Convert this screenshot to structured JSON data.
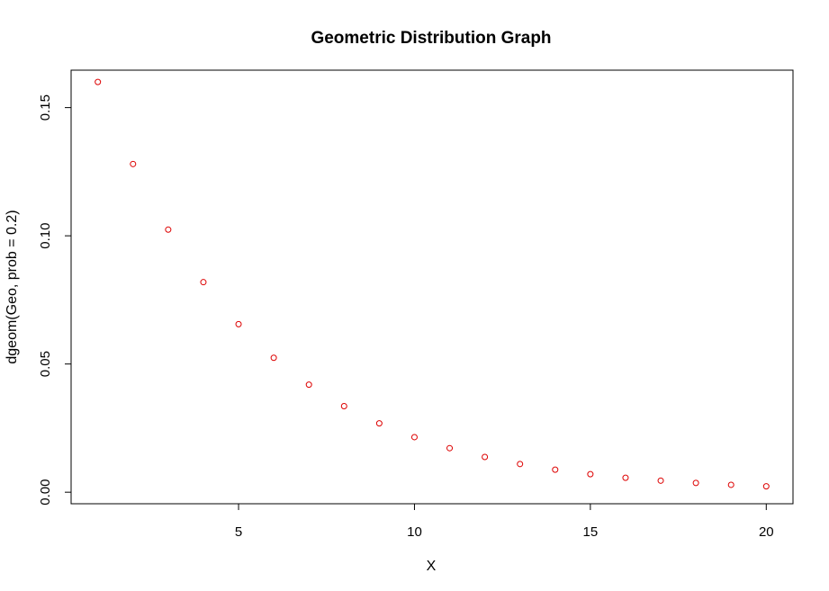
{
  "chart_data": {
    "type": "scatter",
    "title": "Geometric Distribution Graph",
    "xlabel": "X",
    "ylabel": "dgeom(Geo, prob = 0.2)",
    "x": [
      1,
      2,
      3,
      4,
      5,
      6,
      7,
      8,
      9,
      10,
      11,
      12,
      13,
      14,
      15,
      16,
      17,
      18,
      19,
      20
    ],
    "y": [
      0.16,
      0.128,
      0.1024,
      0.08192,
      0.065536,
      0.0524288,
      0.04194304,
      0.03355443,
      0.02684355,
      0.02147484,
      0.01717987,
      0.0137439,
      0.01099512,
      0.008796093,
      0.007036874,
      0.0056295,
      0.0045036,
      0.00360288,
      0.002882304,
      0.002305843
    ],
    "xlim": [
      0.24,
      20.76
    ],
    "ylim": [
      -0.0045,
      0.1646
    ],
    "xticks": [
      5,
      10,
      15,
      20
    ],
    "xtick_labels": [
      "5",
      "10",
      "15",
      "20"
    ],
    "yticks": [
      0.0,
      0.05,
      0.1,
      0.15
    ],
    "ytick_labels": [
      "0.00",
      "0.05",
      "0.10",
      "0.15"
    ],
    "grid": false,
    "marker": "open-circle",
    "point_color": "#dd0000",
    "frame_color": "#000000"
  }
}
